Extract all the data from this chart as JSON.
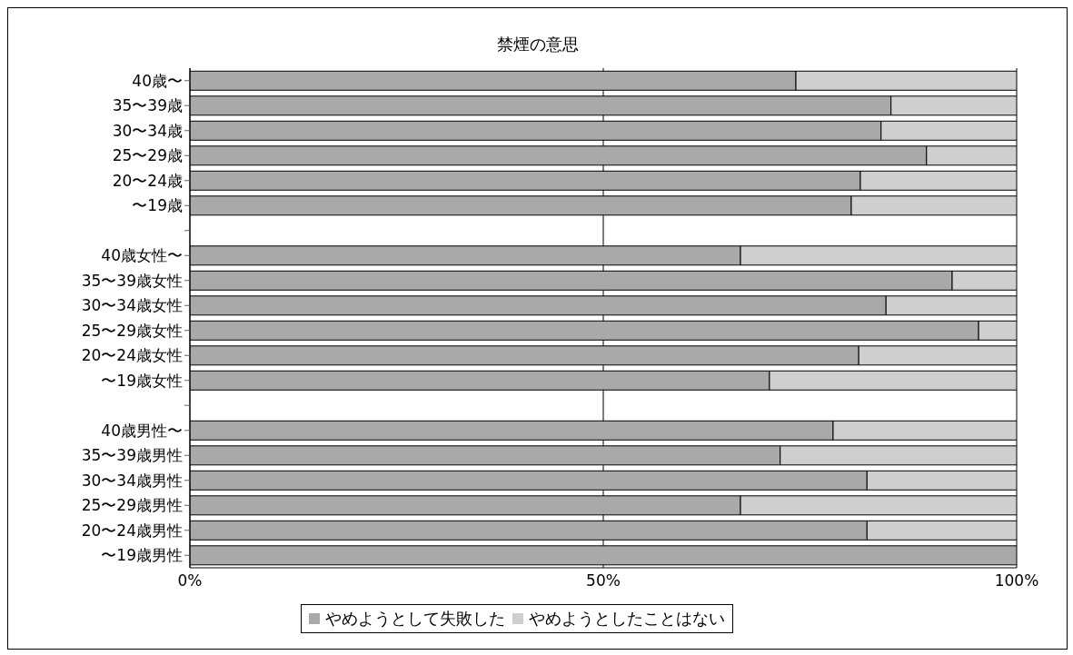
{
  "chart_data": {
    "type": "bar",
    "orientation": "horizontal",
    "stacked": true,
    "title": "禁煙の意思",
    "categories": [
      "40歳〜",
      "35〜39歳",
      "30〜34歳",
      "25〜29歳",
      "20〜24歳",
      "〜19歳",
      null,
      "40歳女性〜",
      "35〜39歳女性",
      "30〜34歳女性",
      "25〜29歳女性",
      "20〜24歳女性",
      "〜19歳女性",
      null,
      "40歳男性〜",
      "35〜39歳男性",
      "30〜34歳男性",
      "25〜29歳男性",
      "20〜24歳男性",
      "〜19歳男性"
    ],
    "series": [
      {
        "name": "やめようとして失敗した",
        "color": "#a9a9a9",
        "values": [
          73.3,
          84.8,
          83.6,
          89.1,
          81.1,
          80.0,
          null,
          66.6,
          92.2,
          84.2,
          95.4,
          80.9,
          70.1,
          null,
          77.8,
          71.4,
          81.9,
          66.6,
          81.9,
          100
        ]
      },
      {
        "name": "やめようとしたことはない",
        "color": "#cfcfcf",
        "values": [
          26.7,
          15.2,
          16.4,
          10.9,
          18.9,
          20.0,
          null,
          33.4,
          7.8,
          15.8,
          4.6,
          19.1,
          29.9,
          null,
          22.2,
          28.6,
          18.1,
          33.4,
          18.1,
          null
        ]
      }
    ],
    "xlim": [
      0,
      100
    ],
    "xticks": [
      {
        "value": 0,
        "label": "0%"
      },
      {
        "value": 50,
        "label": "50%"
      },
      {
        "value": 100,
        "label": "100%"
      }
    ],
    "grid": "x",
    "legend": "bottom"
  }
}
